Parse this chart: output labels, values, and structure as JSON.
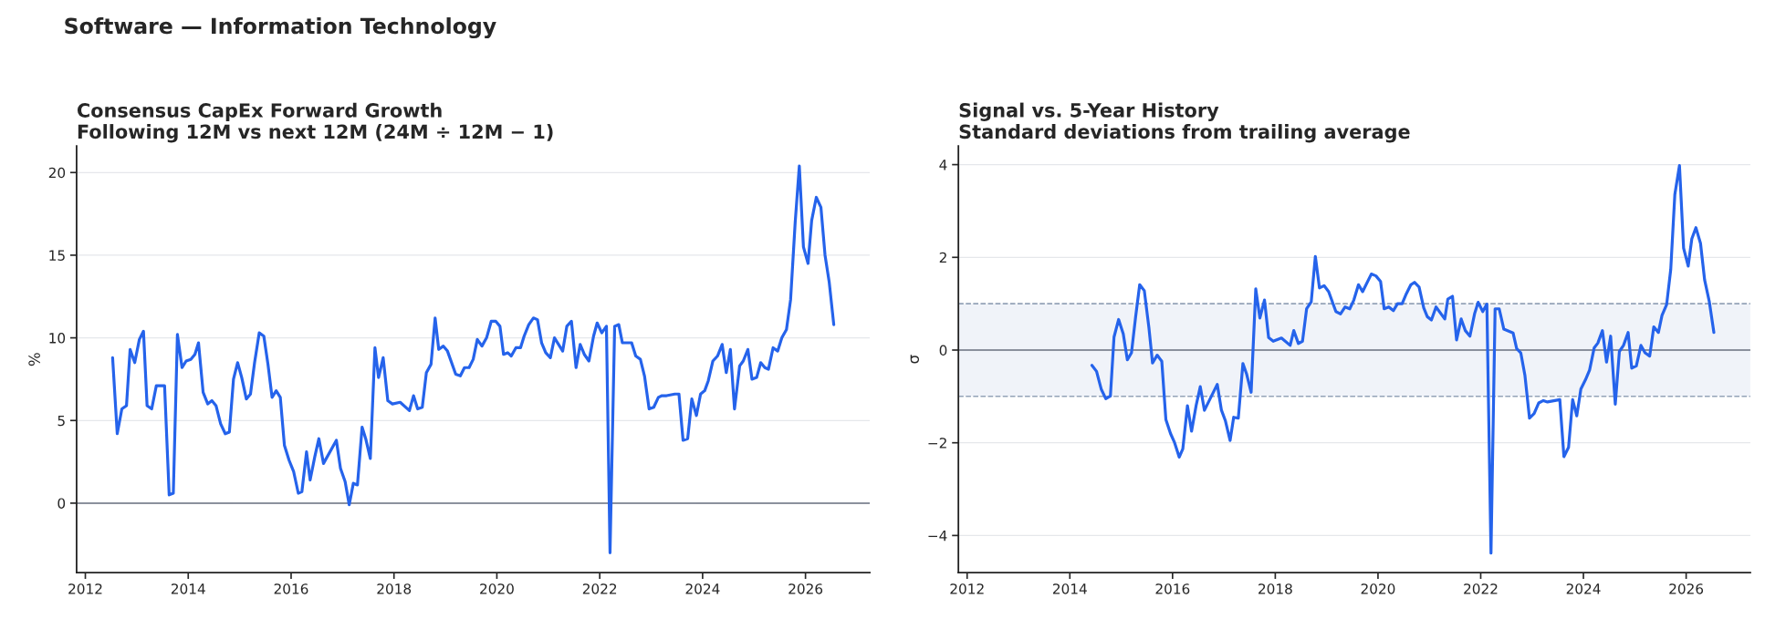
{
  "chart_data": [
    {
      "type": "line",
      "title": "Consensus CapEx Forward Growth",
      "subtitle": "Following 12M vs next 12M (24M ÷ 12M − 1)",
      "ylabel": "%",
      "annotations": [
        "Software — Information Technology"
      ],
      "xlim": [
        2011.83,
        2027.25
      ],
      "xticks": [
        2012,
        2014,
        2016,
        2018,
        2020,
        2022,
        2024,
        2026
      ],
      "ylim": [
        -4.2,
        21.6
      ],
      "yticks": [
        0,
        5,
        10,
        15,
        20
      ],
      "grid": "y",
      "legend": false,
      "marker": "none",
      "line_style": "solid",
      "ref_lines": [
        {
          "axis": "y",
          "value": 0,
          "label": null,
          "color": "#6b7280",
          "line_style": "solid"
        }
      ],
      "series": [
        {
          "color": "#2563eb",
          "x": [
            2012.53,
            2012.62,
            2012.71,
            2012.8,
            2012.87,
            2012.96,
            2013.05,
            2013.13,
            2013.2,
            2013.29,
            2013.38,
            2013.45,
            2013.54,
            2013.63,
            2013.71,
            2013.79,
            2013.88,
            2013.96,
            2014.05,
            2014.13,
            2014.2,
            2014.29,
            2014.38,
            2014.46,
            2014.54,
            2014.63,
            2014.72,
            2014.8,
            2014.88,
            2014.96,
            2015.04,
            2015.13,
            2015.21,
            2015.29,
            2015.38,
            2015.47,
            2015.55,
            2015.63,
            2015.71,
            2015.79,
            2015.87,
            2015.96,
            2016.05,
            2016.14,
            2016.21,
            2016.3,
            2016.37,
            2016.46,
            2016.54,
            2016.63,
            2016.88,
            2016.96,
            2017.05,
            2017.13,
            2017.21,
            2017.29,
            2017.38,
            2017.45,
            2017.54,
            2017.63,
            2017.7,
            2017.79,
            2017.88,
            2017.97,
            2018.12,
            2018.3,
            2018.38,
            2018.46,
            2018.55,
            2018.63,
            2018.72,
            2018.8,
            2018.87,
            2018.96,
            2019.04,
            2019.2,
            2019.29,
            2019.37,
            2019.46,
            2019.54,
            2019.62,
            2019.71,
            2019.8,
            2019.89,
            2019.98,
            2020.06,
            2020.13,
            2020.21,
            2020.28,
            2020.37,
            2020.46,
            2020.53,
            2020.62,
            2020.71,
            2020.79,
            2020.87,
            2020.95,
            2021.04,
            2021.12,
            2021.28,
            2021.36,
            2021.45,
            2021.54,
            2021.62,
            2021.7,
            2021.79,
            2021.88,
            2021.95,
            2022.04,
            2022.13,
            2022.2,
            2022.29,
            2022.37,
            2022.44,
            2022.62,
            2022.7,
            2022.79,
            2022.87,
            2022.96,
            2023.05,
            2023.14,
            2023.21,
            2023.3,
            2023.46,
            2023.54,
            2023.62,
            2023.71,
            2023.79,
            2023.88,
            2023.96,
            2024.04,
            2024.11,
            2024.2,
            2024.29,
            2024.38,
            2024.46,
            2024.54,
            2024.62,
            2024.72,
            2024.79,
            2024.88,
            2024.96,
            2025.05,
            2025.13,
            2025.21,
            2025.28,
            2025.37,
            2025.46,
            2025.54,
            2025.63,
            2025.71,
            2025.8,
            2025.88,
            2025.96,
            2026.05,
            2026.12,
            2026.21,
            2026.3,
            2026.38,
            2026.46,
            2026.55
          ],
          "values": [
            8.8,
            4.2,
            5.7,
            5.9,
            9.3,
            8.5,
            9.9,
            10.4,
            5.9,
            5.7,
            7.1,
            7.1,
            7.1,
            0.5,
            0.6,
            10.2,
            8.2,
            8.6,
            8.7,
            9.0,
            9.7,
            6.7,
            6.0,
            6.2,
            5.9,
            4.8,
            4.2,
            4.3,
            7.5,
            8.5,
            7.6,
            6.3,
            6.6,
            8.5,
            10.3,
            10.1,
            8.4,
            6.4,
            6.8,
            6.4,
            3.5,
            2.6,
            1.9,
            0.6,
            0.7,
            3.1,
            1.4,
            2.8,
            3.9,
            2.4,
            3.8,
            2.1,
            1.3,
            -0.1,
            1.2,
            1.1,
            4.6,
            3.9,
            2.7,
            9.4,
            7.6,
            8.8,
            6.2,
            6.0,
            6.1,
            5.6,
            6.5,
            5.7,
            5.8,
            7.9,
            8.4,
            11.2,
            9.3,
            9.5,
            9.2,
            7.8,
            7.7,
            8.2,
            8.2,
            8.7,
            9.9,
            9.5,
            10.0,
            11.0,
            11.0,
            10.7,
            9.0,
            9.1,
            8.9,
            9.4,
            9.4,
            10.1,
            10.8,
            11.2,
            11.1,
            9.7,
            9.1,
            8.8,
            10.0,
            9.2,
            10.7,
            11.0,
            8.2,
            9.6,
            9.0,
            8.6,
            10.1,
            10.9,
            10.3,
            10.7,
            -3.0,
            10.7,
            10.8,
            9.7,
            9.7,
            8.9,
            8.7,
            7.7,
            5.7,
            5.8,
            6.4,
            6.5,
            6.5,
            6.6,
            6.6,
            3.8,
            3.9,
            6.3,
            5.3,
            6.6,
            6.8,
            7.4,
            8.6,
            8.9,
            9.6,
            7.9,
            9.3,
            5.7,
            8.3,
            8.6,
            9.3,
            7.5,
            7.6,
            8.5,
            8.2,
            8.1,
            9.4,
            9.2,
            10.0,
            10.5,
            12.3,
            17.0,
            20.4,
            15.5,
            14.5,
            17.1,
            18.5,
            17.9,
            15.0,
            13.4,
            10.8
          ]
        }
      ]
    },
    {
      "type": "line",
      "title": "Signal vs. 5-Year History",
      "subtitle": "Standard deviations from trailing average",
      "ylabel": "σ",
      "xlim": [
        2011.83,
        2027.25
      ],
      "xticks": [
        2012,
        2014,
        2016,
        2018,
        2020,
        2022,
        2024,
        2026
      ],
      "ylim": [
        -4.8,
        4.4
      ],
      "yticks": [
        {
          "value": -4,
          "label": "−4"
        },
        {
          "value": -2,
          "label": "−2"
        },
        0,
        2,
        4
      ],
      "grid": "y",
      "legend": false,
      "marker": "none",
      "line_style": "solid",
      "bands": [
        {
          "axis": "y",
          "from": -1,
          "to": 1,
          "label": null,
          "color": "#f0f3f9"
        }
      ],
      "ref_lines": [
        {
          "axis": "y",
          "value": 0,
          "label": null,
          "color": "#6b7280",
          "line_style": "solid"
        },
        {
          "axis": "y",
          "value": 1,
          "label": null,
          "color": "#94a3b8",
          "line_style": "dashed"
        },
        {
          "axis": "y",
          "value": -1,
          "label": null,
          "color": "#94a3b8",
          "line_style": "dashed"
        }
      ],
      "series": [
        {
          "color": "#2563eb",
          "x": [
            2014.43,
            2014.52,
            2014.61,
            2014.7,
            2014.79,
            2014.86,
            2014.95,
            2015.04,
            2015.12,
            2015.2,
            2015.28,
            2015.36,
            2015.45,
            2015.54,
            2015.61,
            2015.7,
            2015.79,
            2015.87,
            2015.96,
            2016.04,
            2016.13,
            2016.2,
            2016.29,
            2016.37,
            2016.46,
            2016.54,
            2016.62,
            2016.87,
            2016.95,
            2017.03,
            2017.12,
            2017.19,
            2017.28,
            2017.37,
            2017.44,
            2017.53,
            2017.62,
            2017.7,
            2017.79,
            2017.87,
            2017.96,
            2018.12,
            2018.29,
            2018.36,
            2018.45,
            2018.53,
            2018.61,
            2018.7,
            2018.78,
            2018.86,
            2018.95,
            2019.04,
            2019.18,
            2019.27,
            2019.36,
            2019.45,
            2019.53,
            2019.62,
            2019.7,
            2019.87,
            2019.96,
            2020.05,
            2020.12,
            2020.21,
            2020.3,
            2020.38,
            2020.47,
            2020.55,
            2020.64,
            2020.71,
            2020.8,
            2020.89,
            2020.96,
            2021.04,
            2021.13,
            2021.3,
            2021.36,
            2021.45,
            2021.53,
            2021.62,
            2021.7,
            2021.79,
            2021.88,
            2021.95,
            2022.04,
            2022.12,
            2022.2,
            2022.28,
            2022.36,
            2022.45,
            2022.63,
            2022.7,
            2022.78,
            2022.86,
            2022.95,
            2023.04,
            2023.13,
            2023.22,
            2023.3,
            2023.54,
            2023.62,
            2023.71,
            2023.79,
            2023.87,
            2023.95,
            2024.04,
            2024.12,
            2024.21,
            2024.28,
            2024.37,
            2024.45,
            2024.53,
            2024.62,
            2024.7,
            2024.78,
            2024.87,
            2024.94,
            2025.03,
            2025.12,
            2025.2,
            2025.29,
            2025.37,
            2025.46,
            2025.53,
            2025.62,
            2025.7,
            2025.78,
            2025.87,
            2025.95,
            2026.04,
            2026.11,
            2026.19,
            2026.28,
            2026.36,
            2026.45,
            2026.54
          ],
          "values": [
            -0.33,
            -0.46,
            -0.84,
            -1.05,
            -0.99,
            0.28,
            0.66,
            0.35,
            -0.21,
            -0.06,
            0.71,
            1.41,
            1.28,
            0.48,
            -0.28,
            -0.11,
            -0.24,
            -1.5,
            -1.8,
            -2.0,
            -2.31,
            -2.13,
            -1.2,
            -1.75,
            -1.19,
            -0.79,
            -1.3,
            -0.74,
            -1.29,
            -1.53,
            -1.95,
            -1.45,
            -1.47,
            -0.29,
            -0.51,
            -0.91,
            1.32,
            0.69,
            1.08,
            0.27,
            0.19,
            0.26,
            0.1,
            0.42,
            0.14,
            0.19,
            0.89,
            1.04,
            2.02,
            1.34,
            1.39,
            1.26,
            0.83,
            0.78,
            0.93,
            0.89,
            1.08,
            1.41,
            1.26,
            1.64,
            1.6,
            1.48,
            0.89,
            0.93,
            0.85,
            1.0,
            1.0,
            1.21,
            1.41,
            1.46,
            1.36,
            0.91,
            0.72,
            0.65,
            0.93,
            0.67,
            1.1,
            1.16,
            0.22,
            0.67,
            0.42,
            0.3,
            0.78,
            1.03,
            0.83,
            0.99,
            -4.38,
            0.89,
            0.89,
            0.45,
            0.37,
            0.03,
            -0.06,
            -0.54,
            -1.47,
            -1.37,
            -1.14,
            -1.09,
            -1.12,
            -1.07,
            -2.3,
            -2.1,
            -1.07,
            -1.42,
            -0.84,
            -0.64,
            -0.43,
            0.05,
            0.15,
            0.42,
            -0.26,
            0.3,
            -1.17,
            -0.03,
            0.1,
            0.38,
            -0.39,
            -0.34,
            0.1,
            -0.06,
            -0.13,
            0.5,
            0.38,
            0.75,
            0.98,
            1.74,
            3.36,
            3.98,
            2.2,
            1.81,
            2.4,
            2.64,
            2.3,
            1.51,
            1.05,
            0.38
          ]
        }
      ]
    }
  ]
}
